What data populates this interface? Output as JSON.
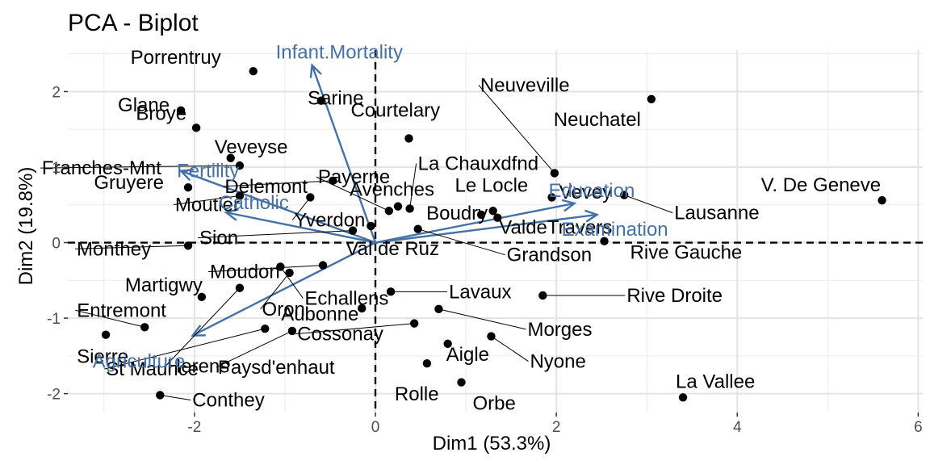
{
  "chart_data": {
    "type": "scatter",
    "title": "PCA - Biplot",
    "xlabel": "Dim1 (53.3%)",
    "ylabel": "Dim2 (19.8%)",
    "xlim": [
      -3.4,
      6.05
    ],
    "ylim": [
      -2.25,
      2.55
    ],
    "x_ticks": [
      -2,
      0,
      2,
      4,
      6
    ],
    "y_ticks": [
      -2,
      -1,
      0,
      1,
      2
    ],
    "grid": true,
    "point_color": "#000000",
    "arrow_color": "#4472A8",
    "points": [
      {
        "label": "Porrentruy",
        "x": -1.35,
        "y": 2.27
      },
      {
        "label": "Sarine",
        "x": -0.6,
        "y": 1.88
      },
      {
        "label": "Glane",
        "x": -2.15,
        "y": 1.75
      },
      {
        "label": "Broye",
        "x": -1.98,
        "y": 1.52
      },
      {
        "label": "Veveyse",
        "x": -1.6,
        "y": 1.12
      },
      {
        "label": "Franches-Mnt",
        "x": -1.5,
        "y": 1.02
      },
      {
        "label": "Delemont",
        "x": -0.47,
        "y": 0.82
      },
      {
        "label": "Gruyere",
        "x": -2.07,
        "y": 0.73
      },
      {
        "label": "Moutier",
        "x": -1.5,
        "y": 0.62
      },
      {
        "label": "Yverdon",
        "x": -0.72,
        "y": 0.6
      },
      {
        "label": "Courtelary",
        "x": 0.37,
        "y": 1.38
      },
      {
        "label": "Payerne",
        "x": 0.15,
        "y": 0.42
      },
      {
        "label": "Avenches",
        "x": 0.25,
        "y": 0.48
      },
      {
        "label": "La Chauxdfnd",
        "x": 0.38,
        "y": 0.45
      },
      {
        "label": "Neuveville",
        "x": 1.98,
        "y": 0.92
      },
      {
        "label": "Le Locle",
        "x": 1.95,
        "y": 0.6
      },
      {
        "label": "Neuchatel",
        "x": 3.05,
        "y": 1.9
      },
      {
        "label": "Vevey",
        "x": 1.3,
        "y": 0.42
      },
      {
        "label": "Lausanne",
        "x": 2.75,
        "y": 0.63
      },
      {
        "label": "ValdeTravers",
        "x": 1.35,
        "y": 0.33
      },
      {
        "label": "V. De Geneve",
        "x": 5.6,
        "y": 0.56
      },
      {
        "label": "Boudry",
        "x": 1.17,
        "y": 0.37
      },
      {
        "label": "Grandson",
        "x": 0.47,
        "y": 0.18
      },
      {
        "label": "Rive Gauche",
        "x": 2.53,
        "y": 0.02
      },
      {
        "label": "Val de Ruz",
        "x": -0.05,
        "y": 0.22
      },
      {
        "label": "Monthey",
        "x": -2.07,
        "y": -0.04
      },
      {
        "label": "Sion",
        "x": -0.25,
        "y": 0.16
      },
      {
        "label": "Moudon",
        "x": -0.58,
        "y": -0.3
      },
      {
        "label": "Echallens",
        "x": -1.05,
        "y": -0.32
      },
      {
        "label": "Martigwy",
        "x": -1.92,
        "y": -0.72
      },
      {
        "label": "Oron",
        "x": -0.95,
        "y": -0.4
      },
      {
        "label": "Lavaux",
        "x": 0.17,
        "y": -0.65
      },
      {
        "label": "Rive Droite",
        "x": 1.85,
        "y": -0.7
      },
      {
        "label": "Entremont",
        "x": -2.55,
        "y": -1.12
      },
      {
        "label": "Herens",
        "x": -1.5,
        "y": -0.6
      },
      {
        "label": "Aubonne",
        "x": -0.15,
        "y": -0.87
      },
      {
        "label": "Morges",
        "x": 0.7,
        "y": -0.88
      },
      {
        "label": "Sierre",
        "x": -2.98,
        "y": -1.22
      },
      {
        "label": "Cossonay",
        "x": 0.43,
        "y": -1.07
      },
      {
        "label": "Nyone",
        "x": 1.28,
        "y": -1.24
      },
      {
        "label": "St Maurice",
        "x": -1.22,
        "y": -1.14
      },
      {
        "label": "Paysd'enhaut",
        "x": -0.92,
        "y": -1.17
      },
      {
        "label": "Aigle",
        "x": 0.8,
        "y": -1.34
      },
      {
        "label": "Rolle",
        "x": 0.57,
        "y": -1.6
      },
      {
        "label": "Orbe",
        "x": 0.95,
        "y": -1.85
      },
      {
        "label": "Conthey",
        "x": -2.38,
        "y": -2.02
      },
      {
        "label": "La Vallee",
        "x": 3.4,
        "y": -2.05
      }
    ],
    "variables": [
      {
        "name": "Infant.Mortality",
        "x": -0.7,
        "y": 2.35
      },
      {
        "name": "Fertility",
        "x": -2.15,
        "y": 0.95
      },
      {
        "name": "Catholic",
        "x": -1.65,
        "y": 0.4
      },
      {
        "name": "Education",
        "x": 2.2,
        "y": 0.52
      },
      {
        "name": "Examination",
        "x": 2.45,
        "y": 0.37
      },
      {
        "name": "Agriculture",
        "x": -2.02,
        "y": -1.23
      }
    ]
  }
}
